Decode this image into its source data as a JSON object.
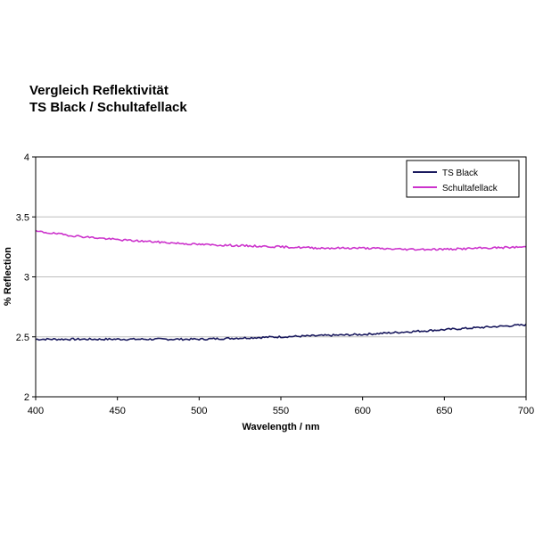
{
  "chart_data": {
    "type": "line",
    "title": "Vergleich Reflektivität",
    "subtitle": "TS Black / Schultafellack",
    "xlabel": "Wavelength / nm",
    "ylabel": "% Reflection",
    "xlim": [
      400,
      700
    ],
    "ylim": [
      2,
      4
    ],
    "xticks": [
      "400",
      "450",
      "500",
      "550",
      "600",
      "650",
      "700"
    ],
    "yticks": [
      "2",
      "2.5",
      "3",
      "3.5",
      "4"
    ],
    "grid": "horizontal",
    "legend_position": "top-right",
    "x": [
      400,
      425,
      450,
      475,
      500,
      525,
      550,
      575,
      600,
      625,
      650,
      675,
      700
    ],
    "series": [
      {
        "name": "TS Black",
        "color": "#1a1a5e",
        "values": [
          2.48,
          2.48,
          2.48,
          2.48,
          2.48,
          2.49,
          2.5,
          2.51,
          2.52,
          2.54,
          2.56,
          2.58,
          2.6
        ]
      },
      {
        "name": "Schultafellack",
        "color": "#cc33cc",
        "values": [
          3.38,
          3.34,
          3.31,
          3.29,
          3.27,
          3.26,
          3.25,
          3.24,
          3.24,
          3.23,
          3.23,
          3.24,
          3.25
        ]
      }
    ]
  }
}
